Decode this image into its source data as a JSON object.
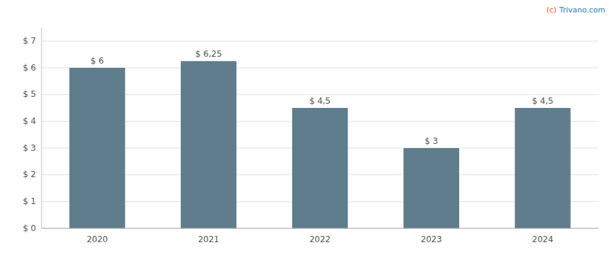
{
  "chart_data": {
    "type": "bar",
    "categories": [
      "2020",
      "2021",
      "2022",
      "2023",
      "2024"
    ],
    "values": [
      6.0,
      6.25,
      4.5,
      3.0,
      4.5
    ],
    "value_labels": [
      "$ 6",
      "$ 6,25",
      "$ 4,5",
      "$ 3",
      "$ 4,5"
    ],
    "color": "#5f7d8c",
    "ylim": [
      0,
      7.5
    ],
    "yticks": [
      {
        "value": 0,
        "label": "$ 0"
      },
      {
        "value": 1,
        "label": "$ 1"
      },
      {
        "value": 2,
        "label": "$ 2"
      },
      {
        "value": 3,
        "label": "$ 3"
      },
      {
        "value": 4,
        "label": "$ 4"
      },
      {
        "value": 5,
        "label": "$ 5"
      },
      {
        "value": 6,
        "label": "$ 6"
      },
      {
        "value": 7,
        "label": "$ 7"
      }
    ],
    "grid": true,
    "data_labels": true,
    "annotations": [
      {
        "text": "(c)",
        "color": "#e84e2a"
      },
      {
        "text": "Trivano.com",
        "color": "#2980b9"
      }
    ]
  }
}
